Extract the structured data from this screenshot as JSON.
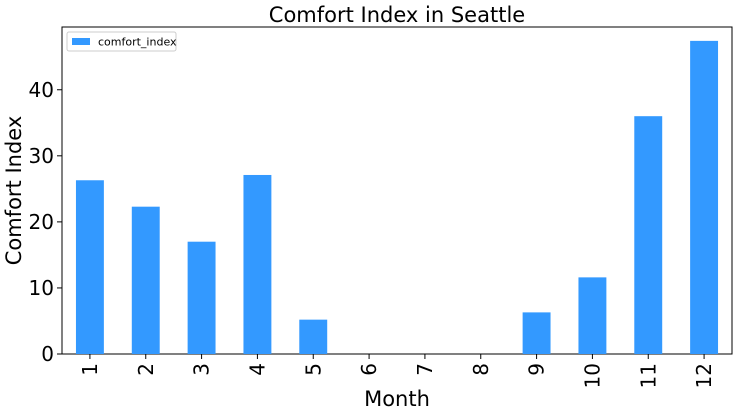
{
  "chart_data": {
    "type": "bar",
    "title": "Comfort Index in Seattle",
    "xlabel": "Month",
    "ylabel": "Comfort Index",
    "categories": [
      "1",
      "2",
      "3",
      "4",
      "5",
      "6",
      "7",
      "8",
      "9",
      "10",
      "11",
      "12"
    ],
    "series": [
      {
        "name": "comfort_index",
        "color": "#3399ff",
        "values": [
          26.3,
          22.3,
          17.0,
          27.1,
          5.2,
          0,
          0,
          0,
          6.3,
          11.6,
          36.0,
          47.4
        ]
      }
    ],
    "ylim": [
      0,
      49.5
    ],
    "yticks": [
      0,
      10,
      20,
      30,
      40
    ],
    "grid": false,
    "legend_position": "top-left"
  }
}
